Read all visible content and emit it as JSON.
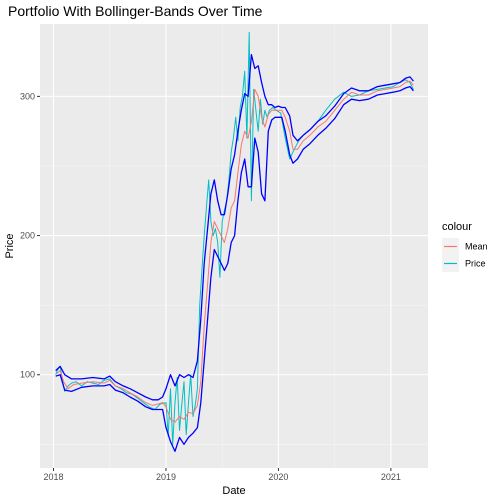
{
  "chart_data": {
    "type": "line",
    "title": "Portfolio With Bollinger-Bands Over Time",
    "xlabel": "Date",
    "ylabel": "Price",
    "x_tick_labels": [
      "2018",
      "2019",
      "2020",
      "2021"
    ],
    "y_tick_labels": [
      "100",
      "200",
      "300"
    ],
    "x_ticks": [
      2018,
      2019,
      2020,
      2021
    ],
    "y_ticks": [
      100,
      200,
      300
    ],
    "xlim": [
      2017.88,
      2021.33
    ],
    "ylim": [
      33,
      352
    ],
    "grid": true,
    "legend_position": "right",
    "legend": {
      "title": "colour",
      "entries": [
        "Mean",
        "Price"
      ]
    },
    "band_color": "#0000ff",
    "series": [
      {
        "name": "Mean",
        "color": "#f8766d",
        "x": [
          2018.03,
          2018.06,
          2018.09,
          2018.13,
          2018.18,
          2018.25,
          2018.35,
          2018.45,
          2018.5,
          2018.55,
          2018.62,
          2018.68,
          2018.75,
          2018.82,
          2018.88,
          2018.93,
          2018.97,
          2019.0,
          2019.04,
          2019.08,
          2019.12,
          2019.16,
          2019.2,
          2019.24,
          2019.28,
          2019.31,
          2019.34,
          2019.37,
          2019.4,
          2019.43,
          2019.46,
          2019.49,
          2019.52,
          2019.55,
          2019.58,
          2019.61,
          2019.64,
          2019.67,
          2019.7,
          2019.73,
          2019.76,
          2019.79,
          2019.82,
          2019.85,
          2019.88,
          2019.91,
          2019.94,
          2019.97,
          2020.0,
          2020.03,
          2020.06,
          2020.1,
          2020.13,
          2020.17,
          2020.22,
          2020.28,
          2020.35,
          2020.42,
          2020.5,
          2020.58,
          2020.65,
          2020.72,
          2020.8,
          2020.88,
          2020.95,
          2021.02,
          2021.08,
          2021.13,
          2021.17,
          2021.2
        ],
        "y": [
          101,
          103,
          95,
          90,
          93,
          94,
          95,
          94,
          96,
          92,
          90,
          87,
          84,
          80,
          78,
          79,
          80,
          77,
          68,
          66,
          70,
          68,
          73,
          72,
          78,
          95,
          135,
          165,
          195,
          210,
          205,
          200,
          195,
          205,
          220,
          225,
          245,
          265,
          275,
          270,
          282,
          305,
          300,
          285,
          278,
          287,
          290,
          290,
          290,
          290,
          285,
          275,
          262,
          262,
          268,
          272,
          278,
          282,
          290,
          298,
          303,
          301,
          301,
          304,
          305,
          306,
          307,
          310,
          311,
          308
        ]
      },
      {
        "name": "Price",
        "color": "#00bfc4",
        "x": [
          2018.02,
          2018.04,
          2018.06,
          2018.08,
          2018.1,
          2018.13,
          2018.16,
          2018.2,
          2018.25,
          2018.3,
          2018.35,
          2018.4,
          2018.45,
          2018.5,
          2018.55,
          2018.6,
          2018.65,
          2018.7,
          2018.75,
          2018.8,
          2018.85,
          2018.9,
          2018.95,
          2019.0,
          2019.02,
          2019.04,
          2019.06,
          2019.08,
          2019.1,
          2019.12,
          2019.14,
          2019.16,
          2019.18,
          2019.2,
          2019.22,
          2019.24,
          2019.26,
          2019.28,
          2019.3,
          2019.32,
          2019.34,
          2019.36,
          2019.38,
          2019.4,
          2019.42,
          2019.44,
          2019.46,
          2019.48,
          2019.5,
          2019.52,
          2019.54,
          2019.56,
          2019.58,
          2019.6,
          2019.62,
          2019.64,
          2019.66,
          2019.68,
          2019.7,
          2019.72,
          2019.74,
          2019.76,
          2019.78,
          2019.8,
          2019.82,
          2019.84,
          2019.86,
          2019.88,
          2019.9,
          2019.92,
          2019.95,
          2019.98,
          2020.02,
          2020.06,
          2020.1,
          2020.14,
          2020.18,
          2020.22,
          2020.28,
          2020.35,
          2020.42,
          2020.5,
          2020.58,
          2020.65,
          2020.72,
          2020.8,
          2020.88,
          2020.95,
          2021.02,
          2021.08,
          2021.13,
          2021.17,
          2021.2
        ],
        "y": [
          100,
          104,
          106,
          96,
          88,
          92,
          94,
          95,
          92,
          95,
          94,
          93,
          96,
          97,
          92,
          90,
          87,
          86,
          83,
          80,
          77,
          75,
          79,
          80,
          56,
          90,
          50,
          80,
          98,
          60,
          78,
          95,
          57,
          80,
          100,
          70,
          78,
          90,
          150,
          175,
          200,
          220,
          240,
          210,
          200,
          205,
          195,
          170,
          210,
          218,
          225,
          240,
          260,
          270,
          285,
          268,
          292,
          300,
          318,
          270,
          346,
          225,
          305,
          290,
          275,
          298,
          280,
          290,
          285,
          290,
          292,
          290,
          288,
          270,
          255,
          262,
          268,
          272,
          276,
          282,
          290,
          298,
          303,
          300,
          301,
          304,
          305,
          306,
          307,
          310,
          312,
          310,
          305
        ]
      }
    ],
    "bands": {
      "x": [
        2018.02,
        2018.06,
        2018.1,
        2018.16,
        2018.25,
        2018.35,
        2018.45,
        2018.5,
        2018.55,
        2018.62,
        2018.68,
        2018.75,
        2018.82,
        2018.88,
        2018.93,
        2018.97,
        2019.0,
        2019.04,
        2019.08,
        2019.12,
        2019.16,
        2019.2,
        2019.24,
        2019.28,
        2019.31,
        2019.34,
        2019.37,
        2019.4,
        2019.43,
        2019.46,
        2019.49,
        2019.52,
        2019.55,
        2019.58,
        2019.61,
        2019.64,
        2019.67,
        2019.7,
        2019.73,
        2019.76,
        2019.79,
        2019.82,
        2019.85,
        2019.88,
        2019.91,
        2019.94,
        2019.97,
        2020.0,
        2020.03,
        2020.06,
        2020.1,
        2020.13,
        2020.17,
        2020.22,
        2020.28,
        2020.35,
        2020.42,
        2020.5,
        2020.58,
        2020.65,
        2020.72,
        2020.8,
        2020.88,
        2020.95,
        2021.02,
        2021.08,
        2021.13,
        2021.17,
        2021.2
      ],
      "upper": [
        103,
        106,
        100,
        97,
        97,
        98,
        97,
        99,
        95,
        92,
        90,
        87,
        84,
        82,
        82,
        84,
        90,
        100,
        92,
        100,
        98,
        100,
        98,
        110,
        140,
        180,
        205,
        230,
        240,
        225,
        215,
        215,
        230,
        248,
        258,
        275,
        290,
        302,
        300,
        330,
        320,
        322,
        310,
        300,
        294,
        294,
        292,
        293,
        292,
        292,
        286,
        272,
        268,
        272,
        276,
        282,
        286,
        293,
        302,
        306,
        304,
        304,
        307,
        308,
        309,
        310,
        313,
        314,
        311
      ],
      "lower": [
        99,
        100,
        89,
        88,
        91,
        92,
        92,
        93,
        89,
        87,
        84,
        81,
        77,
        75,
        75,
        75,
        62,
        52,
        45,
        55,
        50,
        55,
        58,
        62,
        80,
        110,
        140,
        170,
        190,
        185,
        180,
        175,
        180,
        195,
        200,
        225,
        245,
        255,
        235,
        235,
        270,
        260,
        230,
        225,
        275,
        283,
        285,
        285,
        285,
        275,
        258,
        252,
        255,
        262,
        266,
        272,
        277,
        284,
        294,
        298,
        297,
        298,
        301,
        302,
        303,
        304,
        306,
        307,
        304
      ]
    }
  }
}
